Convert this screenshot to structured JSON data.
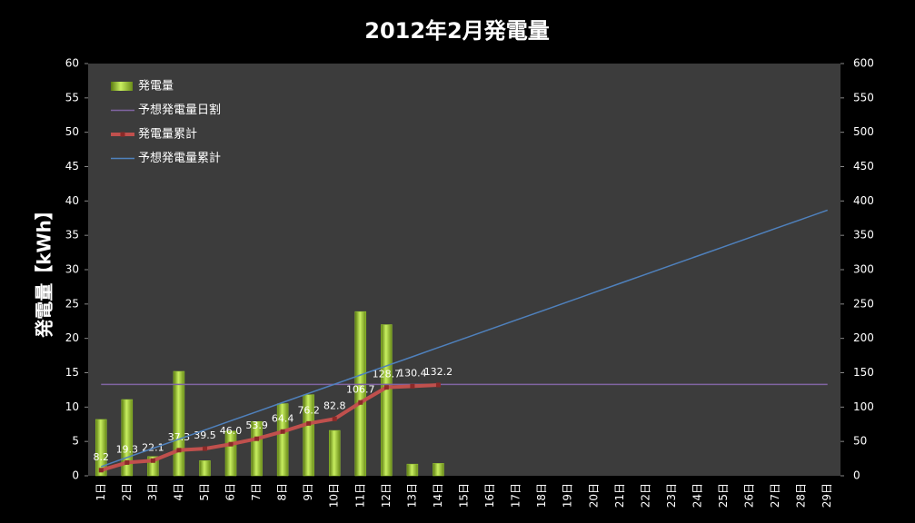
{
  "chart_data": {
    "type": "bar",
    "title": "2012年2月発電量",
    "y_label": "発電量【kWh】",
    "categories": [
      "1日",
      "2日",
      "3日",
      "4日",
      "5日",
      "6日",
      "7日",
      "8日",
      "9日",
      "10日",
      "11日",
      "12日",
      "13日",
      "14日",
      "15日",
      "16日",
      "17日",
      "18日",
      "19日",
      "20日",
      "21日",
      "22日",
      "23日",
      "24日",
      "25日",
      "26日",
      "27日",
      "28日",
      "29日"
    ],
    "ylim": [
      0,
      60
    ],
    "yticks": [
      0,
      5,
      10,
      15,
      20,
      25,
      30,
      35,
      40,
      45,
      50,
      55,
      60
    ],
    "y2lim": [
      0,
      600
    ],
    "y2ticks": [
      0,
      50,
      100,
      150,
      200,
      250,
      300,
      350,
      400,
      450,
      500,
      550,
      600
    ],
    "legend": "upper-left",
    "series": [
      {
        "name": "発電量",
        "type": "bar",
        "color": "#9acd32",
        "values": [
          8.2,
          11.1,
          2.8,
          15.2,
          2.2,
          6.5,
          7.9,
          10.5,
          11.8,
          6.6,
          23.9,
          22.0,
          1.7,
          1.8,
          null,
          null,
          null,
          null,
          null,
          null,
          null,
          null,
          null,
          null,
          null,
          null,
          null,
          null,
          null
        ]
      },
      {
        "name": "予想発電量日割",
        "type": "line",
        "color": "#8064a2",
        "values": [
          13.3,
          13.3,
          13.3,
          13.3,
          13.3,
          13.3,
          13.3,
          13.3,
          13.3,
          13.3,
          13.3,
          13.3,
          13.3,
          13.3,
          13.3,
          13.3,
          13.3,
          13.3,
          13.3,
          13.3,
          13.3,
          13.3,
          13.3,
          13.3,
          13.3,
          13.3,
          13.3,
          13.3,
          13.3
        ]
      },
      {
        "name": "発電量累計",
        "type": "line",
        "axis": "y2",
        "color": "#c0504d",
        "markers": true,
        "values": [
          8.2,
          19.3,
          22.1,
          37.3,
          39.5,
          46.0,
          53.9,
          64.4,
          76.2,
          82.8,
          106.7,
          128.7,
          130.4,
          132.2,
          null,
          null,
          null,
          null,
          null,
          null,
          null,
          null,
          null,
          null,
          null,
          null,
          null,
          null,
          null
        ],
        "value_labels": [
          "8.2",
          "19.3",
          "22.1",
          "37.3",
          "39.5",
          "46.0",
          "53.9",
          "64.4",
          "76.2",
          "82.8",
          "106.7",
          "128.7",
          "130.4",
          "132.2",
          null,
          null,
          null,
          null,
          null,
          null,
          null,
          null,
          null,
          null,
          null,
          null,
          null,
          null,
          null
        ]
      },
      {
        "name": "予想発電量累計",
        "type": "line",
        "axis": "y2",
        "color": "#4f81bd",
        "values": [
          13.3,
          26.7,
          40,
          53.3,
          66.7,
          80,
          93.3,
          106.7,
          120,
          133.3,
          146.7,
          160,
          173.3,
          186.7,
          200,
          213.3,
          226.7,
          240,
          253.3,
          266.7,
          280,
          293.3,
          306.7,
          320,
          333.3,
          346.7,
          360,
          373.3,
          386.7
        ]
      }
    ]
  }
}
